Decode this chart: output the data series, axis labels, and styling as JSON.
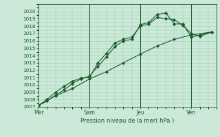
{
  "title": "",
  "xlabel": "Pression niveau de la mer( hPa )",
  "ylabel": "",
  "bg_color": "#cce8d8",
  "grid_color": "#99ccb0",
  "line_color": "#1a5c28",
  "ylim": [
    1007,
    1021
  ],
  "yticks": [
    1007,
    1008,
    1009,
    1010,
    1011,
    1012,
    1013,
    1014,
    1015,
    1016,
    1017,
    1018,
    1019,
    1020
  ],
  "day_labels": [
    "Mer",
    "Sam",
    "Jeu",
    "Ven"
  ],
  "day_positions": [
    0,
    3,
    6,
    9
  ],
  "xlim": [
    0,
    10.5
  ],
  "series1_x": [
    0,
    0.5,
    1.0,
    1.5,
    2.0,
    2.5,
    3.0,
    3.5,
    4.0,
    4.5,
    5.0,
    5.5,
    6.0,
    6.5,
    7.0,
    7.5,
    8.0,
    8.5,
    9.0,
    9.5,
    10.2
  ],
  "series1_y": [
    1007.2,
    1007.8,
    1008.6,
    1009.3,
    1010.2,
    1010.8,
    1011.2,
    1012.5,
    1013.8,
    1015.2,
    1016.0,
    1016.2,
    1018.2,
    1018.5,
    1019.6,
    1019.8,
    1018.3,
    1018.3,
    1016.5,
    1016.8,
    1017.2
  ],
  "series2_x": [
    0,
    0.5,
    1.0,
    1.5,
    2.0,
    2.5,
    3.0,
    3.5,
    4.0,
    4.5,
    5.0,
    5.5,
    6.0,
    6.5,
    7.0,
    7.5,
    8.0,
    8.5,
    9.0,
    9.5,
    10.2
  ],
  "series2_y": [
    1007.2,
    1008.0,
    1009.0,
    1009.8,
    1010.5,
    1010.9,
    1011.0,
    1013.0,
    1014.3,
    1015.7,
    1016.2,
    1016.5,
    1018.0,
    1018.3,
    1019.2,
    1019.0,
    1018.9,
    1018.1,
    1017.0,
    1016.6,
    1017.2
  ],
  "series3_x": [
    0,
    1.0,
    2.0,
    3.0,
    4.0,
    5.0,
    6.0,
    7.0,
    8.0,
    9.0,
    10.2
  ],
  "series3_y": [
    1007.2,
    1008.5,
    1009.5,
    1010.8,
    1011.8,
    1013.0,
    1014.2,
    1015.3,
    1016.2,
    1016.8,
    1017.2
  ]
}
